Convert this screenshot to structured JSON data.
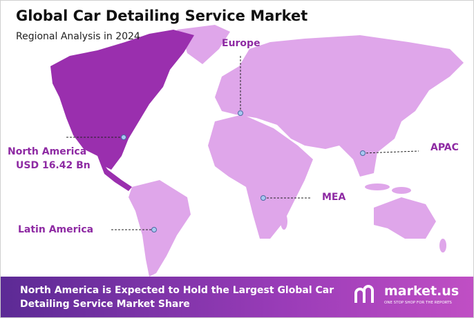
{
  "header": {
    "title": "Global Car Detailing Service Market",
    "subtitle": "Regional Analysis in 2024"
  },
  "regions": [
    {
      "label": "Europe"
    },
    {
      "label": "North America",
      "value": "USD 16.42 Bn"
    },
    {
      "label": "APAC"
    },
    {
      "label": "MEA"
    },
    {
      "label": "Latin America"
    }
  ],
  "footer": {
    "text": "North America is Expected to Hold the Largest Global Car Detailing Service Market Share"
  },
  "logo": {
    "name": "market.us",
    "tagline": "ONE STOP SHOP FOR THE REPORTS"
  }
}
